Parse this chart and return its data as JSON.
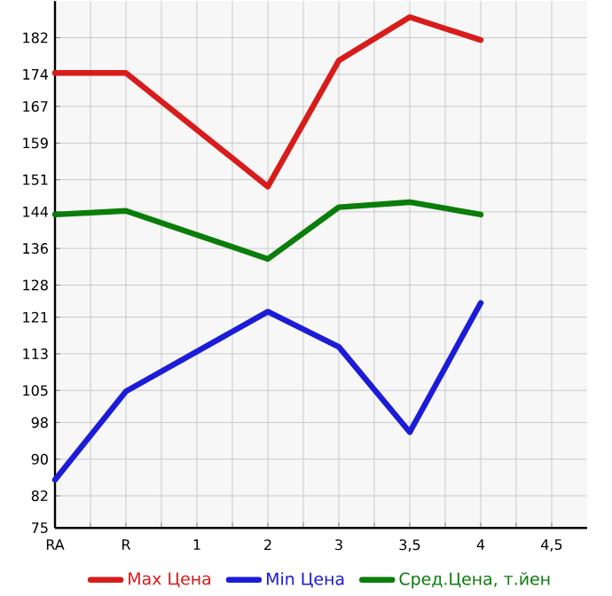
{
  "chart_data": {
    "type": "line",
    "categories": [
      "RA",
      "R",
      "1",
      "2",
      "3",
      "3,5",
      "4",
      "4,5"
    ],
    "series": [
      {
        "name": "Max Цена",
        "color": "#d81c1c",
        "values": [
          174.3,
          174.3,
          null,
          149.5,
          177,
          186.5,
          181.5,
          null
        ]
      },
      {
        "name": "Min Цена",
        "color": "#1c1cd8",
        "values": [
          85.5,
          104.8,
          null,
          122.2,
          114.5,
          95.9,
          124.1,
          null
        ]
      },
      {
        "name": "Сред.Цена, т.йен",
        "color": "#0a7d0a",
        "values": [
          143.4,
          144.2,
          null,
          133.7,
          145,
          146.1,
          143.4,
          null
        ]
      }
    ],
    "ylim": [
      75,
      190
    ],
    "yticks": [
      75,
      82,
      90,
      98,
      105,
      113,
      121,
      128,
      136,
      144,
      151,
      159,
      167,
      174,
      182
    ],
    "grid": true,
    "legend": "bottom"
  }
}
